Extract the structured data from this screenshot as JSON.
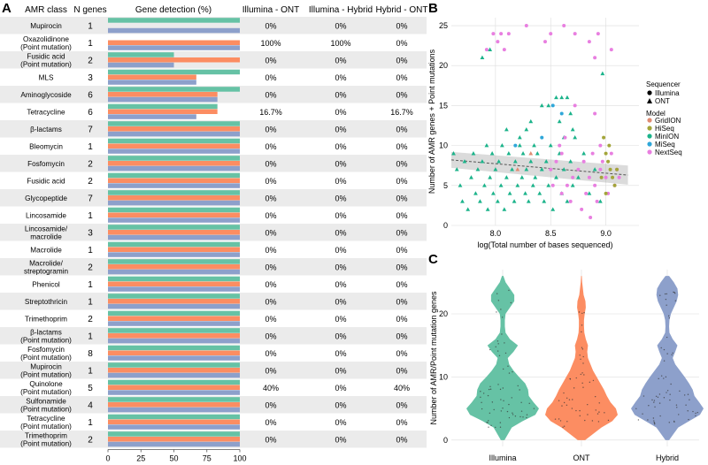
{
  "panels": {
    "a": "A",
    "b": "B",
    "c": "C"
  },
  "colors": {
    "illumina": "#66c2a5",
    "ont": "#fc8d62",
    "hybrid": "#8da0cb",
    "row_shade": "#ebebeb",
    "grid": "#dddddd",
    "gridion": "#e08b72",
    "hiseq": "#a3a53a",
    "minion": "#1bb38a",
    "miseq": "#2fa7d9",
    "nextseq": "#e87fe0"
  },
  "table": {
    "headers": {
      "amr_class": "AMR class",
      "n_genes": "N genes",
      "detection": "Gene detection (%)",
      "ill_ont": "Illumina - ONT",
      "ill_hyb": "Illumina - Hybrid",
      "hyb_ont": "Hybrid - ONT"
    },
    "rows": [
      {
        "l1": "Mupirocin",
        "l2": "",
        "n": "1",
        "ia": "0%",
        "ih": "0%",
        "ho": "0%"
      },
      {
        "l1": "Oxazolidinone",
        "l2": "(Point mutation)",
        "n": "1",
        "ia": "100%",
        "ih": "100%",
        "ho": "0%"
      },
      {
        "l1": "Fusidic acid",
        "l2": "(Point mutation)",
        "n": "2",
        "ia": "0%",
        "ih": "0%",
        "ho": "0%"
      },
      {
        "l1": "MLS",
        "l2": "",
        "n": "3",
        "ia": "0%",
        "ih": "0%",
        "ho": "0%"
      },
      {
        "l1": "Aminoglycoside",
        "l2": "",
        "n": "6",
        "ia": "0%",
        "ih": "0%",
        "ho": "0%"
      },
      {
        "l1": "Tetracycline",
        "l2": "",
        "n": "6",
        "ia": "16.7%",
        "ih": "0%",
        "ho": "16.7%"
      },
      {
        "l1": "β-lactams",
        "l2": "",
        "n": "7",
        "ia": "0%",
        "ih": "0%",
        "ho": "0%"
      },
      {
        "l1": "Bleomycin",
        "l2": "",
        "n": "1",
        "ia": "0%",
        "ih": "0%",
        "ho": "0%"
      },
      {
        "l1": "Fosfomycin",
        "l2": "",
        "n": "2",
        "ia": "0%",
        "ih": "0%",
        "ho": "0%"
      },
      {
        "l1": "Fusidic acid",
        "l2": "",
        "n": "2",
        "ia": "0%",
        "ih": "0%",
        "ho": "0%"
      },
      {
        "l1": "Glycopeptide",
        "l2": "",
        "n": "7",
        "ia": "0%",
        "ih": "0%",
        "ho": "0%"
      },
      {
        "l1": "Lincosamide",
        "l2": "",
        "n": "1",
        "ia": "0%",
        "ih": "0%",
        "ho": "0%"
      },
      {
        "l1": "Lincosamide/",
        "l2": "macrolide",
        "n": "3",
        "ia": "0%",
        "ih": "0%",
        "ho": "0%"
      },
      {
        "l1": "Macrolide",
        "l2": "",
        "n": "1",
        "ia": "0%",
        "ih": "0%",
        "ho": "0%"
      },
      {
        "l1": "Macrolide/",
        "l2": "streptogramin",
        "n": "2",
        "ia": "0%",
        "ih": "0%",
        "ho": "0%"
      },
      {
        "l1": "Phenicol",
        "l2": "",
        "n": "1",
        "ia": "0%",
        "ih": "0%",
        "ho": "0%"
      },
      {
        "l1": "Streptothricin",
        "l2": "",
        "n": "1",
        "ia": "0%",
        "ih": "0%",
        "ho": "0%"
      },
      {
        "l1": "Trimethoprim",
        "l2": "",
        "n": "2",
        "ia": "0%",
        "ih": "0%",
        "ho": "0%"
      },
      {
        "l1": "β-lactams",
        "l2": "(Point mutation)",
        "n": "1",
        "ia": "0%",
        "ih": "0%",
        "ho": "0%"
      },
      {
        "l1": "Fosfomycin",
        "l2": "(Point mutation)",
        "n": "8",
        "ia": "0%",
        "ih": "0%",
        "ho": "0%"
      },
      {
        "l1": "Mupirocin",
        "l2": "(Point mutation)",
        "n": "1",
        "ia": "0%",
        "ih": "0%",
        "ho": "0%"
      },
      {
        "l1": "Quinolone",
        "l2": "(Point mutation)",
        "n": "5",
        "ia": "40%",
        "ih": "0%",
        "ho": "40%"
      },
      {
        "l1": "Sulfonamide",
        "l2": "(Point mutation)",
        "n": "4",
        "ia": "0%",
        "ih": "0%",
        "ho": "0%"
      },
      {
        "l1": "Tetracycline",
        "l2": "(Point mutation)",
        "n": "1",
        "ia": "0%",
        "ih": "0%",
        "ho": "0%"
      },
      {
        "l1": "Trimethoprim",
        "l2": "(Point mutation)",
        "n": "2",
        "ia": "0%",
        "ih": "0%",
        "ho": "0%"
      }
    ]
  },
  "chart_data": [
    {
      "type": "bar",
      "title": "Gene detection (%)",
      "orientation": "horizontal",
      "xlim": [
        0,
        100
      ],
      "xticks": [
        "0",
        "25",
        "50",
        "75",
        "100"
      ],
      "series_names": [
        "Illumina",
        "ONT",
        "Hybrid"
      ],
      "values": [
        [
          100,
          0,
          100
        ],
        [
          0,
          100,
          100
        ],
        [
          50,
          100,
          50
        ],
        [
          100,
          67,
          67
        ],
        [
          100,
          83,
          83
        ],
        [
          83,
          83,
          67
        ],
        [
          100,
          100,
          100
        ],
        [
          100,
          100,
          100
        ],
        [
          100,
          100,
          100
        ],
        [
          100,
          100,
          100
        ],
        [
          100,
          100,
          100
        ],
        [
          100,
          100,
          100
        ],
        [
          100,
          100,
          100
        ],
        [
          100,
          100,
          100
        ],
        [
          100,
          100,
          100
        ],
        [
          100,
          100,
          100
        ],
        [
          100,
          100,
          100
        ],
        [
          100,
          100,
          100
        ],
        [
          100,
          100,
          100
        ],
        [
          100,
          100,
          100
        ],
        [
          100,
          100,
          100
        ],
        [
          100,
          100,
          100
        ],
        [
          100,
          100,
          100
        ],
        [
          100,
          100,
          100
        ],
        [
          100,
          100,
          100
        ]
      ]
    },
    {
      "type": "scatter",
      "xlabel": "log(Total number of bases sequenced)",
      "ylabel": "Number of AMR genes + Point mutations",
      "xlim": [
        7.6,
        9.3
      ],
      "ylim": [
        0,
        26
      ],
      "xticks": [
        8.0,
        8.5,
        9.0
      ],
      "yticks": [
        0,
        5,
        10,
        15,
        20,
        25
      ],
      "legend": {
        "sequencer_title": "Sequencer",
        "sequencer": [
          {
            "name": "Illumina",
            "shape": "circle"
          },
          {
            "name": "ONT",
            "shape": "triangle"
          }
        ],
        "model_title": "Model",
        "models": [
          "GridION",
          "HiSeq",
          "MinION",
          "MiSeq",
          "NextSeq"
        ]
      },
      "trend": {
        "x": [
          7.6,
          9.2
        ],
        "y": [
          8.2,
          6.3
        ]
      },
      "series": [
        {
          "model": "MinION",
          "shape": "triangle",
          "points": [
            [
              7.62,
              9
            ],
            [
              7.65,
              7
            ],
            [
              7.68,
              5
            ],
            [
              7.7,
              3
            ],
            [
              7.72,
              8
            ],
            [
              7.75,
              2
            ],
            [
              7.78,
              6
            ],
            [
              7.8,
              9
            ],
            [
              7.82,
              4
            ],
            [
              7.84,
              7
            ],
            [
              7.86,
              3
            ],
            [
              7.88,
              8
            ],
            [
              7.9,
              5
            ],
            [
              7.92,
              10
            ],
            [
              7.93,
              2
            ],
            [
              7.95,
              6
            ],
            [
              7.97,
              9
            ],
            [
              7.98,
              4
            ],
            [
              8.0,
              7
            ],
            [
              8.02,
              3
            ],
            [
              8.03,
              8
            ],
            [
              8.05,
              5
            ],
            [
              8.06,
              10
            ],
            [
              8.08,
              2
            ],
            [
              8.1,
              6
            ],
            [
              8.12,
              9
            ],
            [
              8.13,
              4
            ],
            [
              8.15,
              7
            ],
            [
              8.17,
              3
            ],
            [
              8.18,
              8
            ],
            [
              8.2,
              5
            ],
            [
              8.22,
              10
            ],
            [
              8.24,
              6
            ],
            [
              8.25,
              9
            ],
            [
              8.27,
              4
            ],
            [
              8.28,
              7
            ],
            [
              8.3,
              3
            ],
            [
              8.32,
              8
            ],
            [
              8.34,
              5
            ],
            [
              8.36,
              6
            ],
            [
              8.38,
              9
            ],
            [
              8.4,
              4
            ],
            [
              8.42,
              7
            ],
            [
              8.44,
              3
            ],
            [
              8.46,
              8
            ],
            [
              8.48,
              5
            ],
            [
              8.5,
              10
            ],
            [
              8.52,
              2
            ],
            [
              8.55,
              6
            ],
            [
              8.58,
              9
            ],
            [
              8.6,
              4
            ],
            [
              8.62,
              7
            ],
            [
              8.65,
              3
            ],
            [
              8.68,
              8
            ],
            [
              8.7,
              5
            ],
            [
              8.75,
              6
            ],
            [
              8.8,
              9
            ],
            [
              8.85,
              4
            ],
            [
              8.9,
              7
            ],
            [
              8.95,
              3
            ],
            [
              7.88,
              21
            ],
            [
              7.95,
              22
            ],
            [
              8.1,
              12
            ],
            [
              8.22,
              11
            ],
            [
              8.32,
              13
            ],
            [
              8.48,
              15
            ],
            [
              8.55,
              16
            ],
            [
              8.6,
              16
            ],
            [
              8.58,
              13
            ],
            [
              8.62,
              11
            ],
            [
              8.65,
              16
            ],
            [
              8.68,
              14
            ],
            [
              8.7,
              12
            ],
            [
              8.72,
              11
            ],
            [
              8.97,
              19
            ],
            [
              8.42,
              15
            ],
            [
              8.35,
              10
            ],
            [
              8.28,
              12
            ]
          ]
        },
        {
          "model": "NextSeq",
          "shape": "circle",
          "points": [
            [
              7.92,
              22
            ],
            [
              7.98,
              24
            ],
            [
              8.02,
              23
            ],
            [
              8.05,
              24
            ],
            [
              8.08,
              22
            ],
            [
              8.12,
              24
            ],
            [
              8.28,
              25
            ],
            [
              8.45,
              23
            ],
            [
              8.5,
              24
            ],
            [
              8.62,
              25
            ],
            [
              8.72,
              24
            ],
            [
              8.85,
              23
            ],
            [
              8.9,
              21
            ],
            [
              8.93,
              24
            ],
            [
              9.05,
              22
            ],
            [
              8.72,
              15
            ],
            [
              8.9,
              14
            ],
            [
              8.95,
              10
            ],
            [
              8.5,
              7
            ],
            [
              8.55,
              8
            ],
            [
              8.6,
              9
            ],
            [
              8.65,
              5
            ],
            [
              8.7,
              6
            ],
            [
              8.75,
              7
            ],
            [
              8.8,
              8
            ],
            [
              8.82,
              4
            ],
            [
              8.85,
              6
            ],
            [
              8.88,
              9
            ],
            [
              8.9,
              5
            ],
            [
              8.92,
              3
            ],
            [
              8.95,
              7
            ],
            [
              8.97,
              8
            ],
            [
              9.0,
              6
            ],
            [
              9.02,
              4
            ],
            [
              9.05,
              9
            ],
            [
              9.08,
              5
            ],
            [
              9.1,
              7
            ],
            [
              9.12,
              6
            ],
            [
              8.68,
              3
            ],
            [
              8.78,
              2
            ],
            [
              8.86,
              1
            ],
            [
              8.6,
              4
            ],
            [
              8.52,
              5
            ],
            [
              8.58,
              10
            ],
            [
              8.63,
              11
            ]
          ]
        },
        {
          "model": "HiSeq",
          "shape": "circle",
          "points": [
            [
              8.98,
              11
            ],
            [
              9.0,
              9
            ],
            [
              9.02,
              8
            ],
            [
              9.04,
              7
            ],
            [
              9.06,
              6
            ],
            [
              9.08,
              5
            ],
            [
              9.0,
              4
            ],
            [
              9.1,
              7
            ],
            [
              9.03,
              10
            ],
            [
              8.96,
              6
            ]
          ]
        },
        {
          "model": "MiSeq",
          "shape": "circle",
          "points": [
            [
              8.18,
              10
            ],
            [
              8.42,
              11
            ],
            [
              8.52,
              15
            ],
            [
              8.6,
              14
            ]
          ]
        },
        {
          "model": "GridION",
          "shape": "triangle",
          "points": [
            [
              8.2,
              7
            ],
            [
              8.32,
              9
            ]
          ]
        }
      ]
    },
    {
      "type": "violin",
      "ylabel": "Number of AMR/Point mutation genes",
      "categories": [
        "Illumina",
        "ONT",
        "Hybrid"
      ],
      "ylim": [
        -1,
        27
      ],
      "yticks": [
        0,
        10,
        20
      ],
      "densities": {
        "y": [
          0,
          2,
          3,
          4,
          5,
          6,
          7,
          8,
          9,
          10,
          11,
          12,
          13,
          14,
          15,
          16,
          17,
          18,
          19,
          20,
          21,
          22,
          23,
          24,
          25,
          26
        ],
        "Illumina": [
          0.05,
          0.25,
          0.55,
          0.9,
          1.0,
          0.85,
          0.72,
          0.7,
          0.62,
          0.45,
          0.3,
          0.18,
          0.14,
          0.3,
          0.42,
          0.2,
          0.08,
          0.06,
          0.06,
          0.08,
          0.2,
          0.32,
          0.32,
          0.2,
          0.08,
          0.02
        ],
        "ONT": [
          0.1,
          0.55,
          0.85,
          1.0,
          0.95,
          0.8,
          0.7,
          0.62,
          0.52,
          0.42,
          0.32,
          0.25,
          0.18,
          0.16,
          0.18,
          0.12,
          0.08,
          0.07,
          0.07,
          0.09,
          0.12,
          0.11,
          0.06,
          0.04,
          0.02,
          0.01
        ],
        "Hybrid": [
          0.05,
          0.3,
          0.6,
          0.9,
          1.0,
          0.88,
          0.75,
          0.7,
          0.6,
          0.48,
          0.35,
          0.22,
          0.15,
          0.22,
          0.28,
          0.15,
          0.06,
          0.05,
          0.06,
          0.1,
          0.18,
          0.26,
          0.3,
          0.28,
          0.18,
          0.05
        ]
      }
    }
  ]
}
